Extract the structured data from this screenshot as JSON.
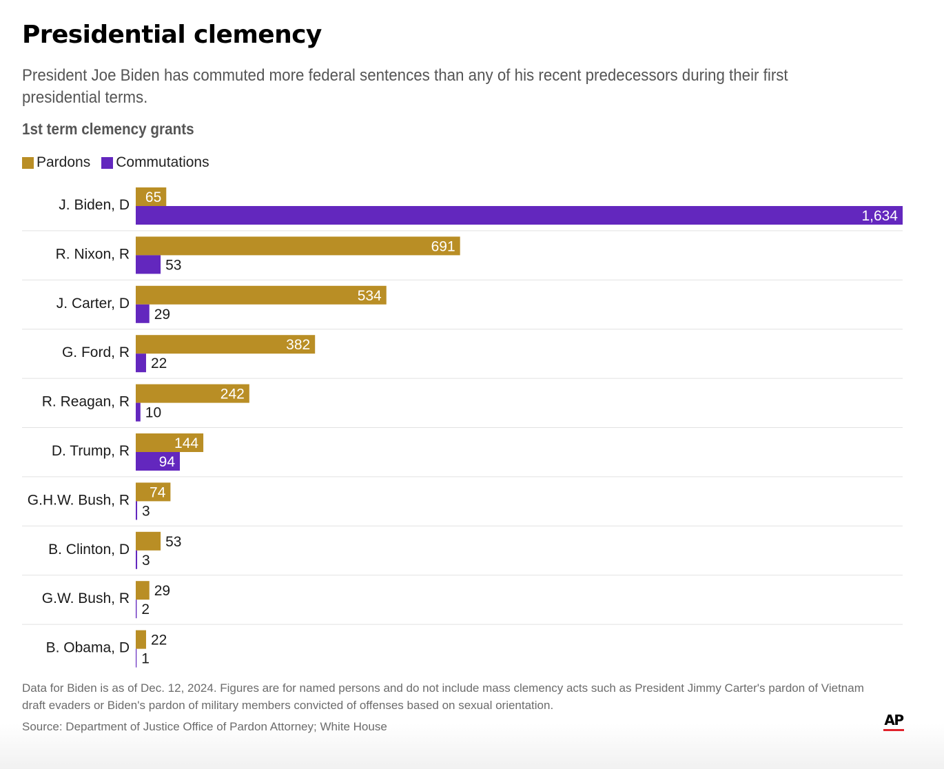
{
  "header": {
    "title": "Presidential clemency",
    "subtitle": "President Joe Biden has commuted more federal sentences than any of his recent predecessors during their first presidential terms."
  },
  "chart_data": {
    "type": "bar",
    "orientation": "horizontal",
    "title": "1st term clemency grants",
    "categories": [
      "J. Biden, D",
      "R. Nixon, R",
      "J. Carter, D",
      "G. Ford, R",
      "R. Reagan, R",
      "D. Trump, R",
      "G.H.W. Bush, R",
      "B. Clinton, D",
      "G.W. Bush, R",
      "B. Obama, D"
    ],
    "series": [
      {
        "name": "Pardons",
        "color": "#b98e25",
        "values": [
          65,
          691,
          534,
          382,
          242,
          144,
          74,
          53,
          29,
          22
        ],
        "labels": [
          "65",
          "691",
          "534",
          "382",
          "242",
          "144",
          "74",
          "53",
          "29",
          "22"
        ]
      },
      {
        "name": "Commutations",
        "color": "#6327be",
        "values": [
          1634,
          53,
          29,
          22,
          10,
          94,
          3,
          3,
          2,
          1
        ],
        "labels": [
          "1,634",
          "53",
          "29",
          "22",
          "10",
          "94",
          "3",
          "3",
          "2",
          "1"
        ]
      }
    ],
    "xlim": [
      0,
      1634
    ],
    "legend": "top-left",
    "grid": false
  },
  "footer": {
    "note": "Data for Biden is as of Dec. 12, 2024. Figures are for named persons and do not include mass clemency acts such as President Jimmy Carter's pardon of Vietnam draft evaders or Biden's pardon of military members convicted of offenses based on sexual orientation.",
    "source": "Source: Department of Justice Office of Pardon Attorney; White House",
    "logo": "AP"
  }
}
